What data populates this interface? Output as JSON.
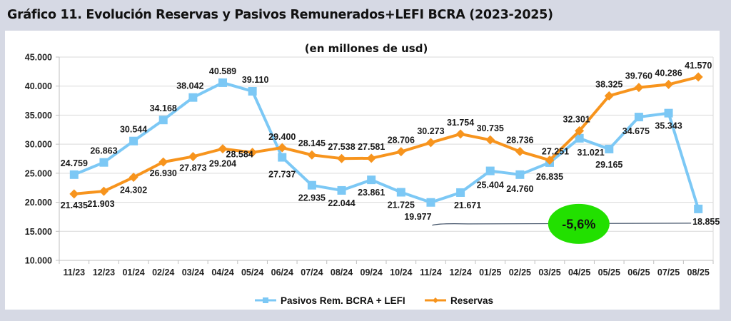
{
  "header": {
    "title": "Gráfico 11. Evolución Reservas y Pasivos Remunerados+LEFI BCRA (2023-2025)"
  },
  "chart_data": {
    "type": "line",
    "title": "(en millones de usd)",
    "xlabel": "",
    "ylabel": "",
    "ylim": [
      10000,
      45000
    ],
    "yticks": [
      10000,
      15000,
      20000,
      25000,
      30000,
      35000,
      40000,
      45000
    ],
    "ytick_labels": [
      "10.000",
      "15.000",
      "20.000",
      "25.000",
      "30.000",
      "35.000",
      "40.000",
      "45.000"
    ],
    "grid": true,
    "legend_position": "bottom",
    "categories": [
      "11/23",
      "12/23",
      "01/24",
      "02/24",
      "03/24",
      "04/24",
      "05/24",
      "06/24",
      "07/24",
      "08/24",
      "09/24",
      "10/24",
      "11/24",
      "12/24",
      "01/25",
      "02/25",
      "03/25",
      "04/25",
      "05/25",
      "06/25",
      "07/25",
      "08/25"
    ],
    "series": [
      {
        "name": "Pasivos Rem. BCRA + LEFI",
        "color": "#7cc8f5",
        "marker": "square",
        "values": [
          24759,
          26863,
          30544,
          34168,
          38042,
          40589,
          39110,
          27737,
          22935,
          22044,
          23861,
          21725,
          19977,
          21671,
          25404,
          24760,
          26835,
          31021,
          29165,
          34675,
          35343,
          18855
        ],
        "labels": [
          "24.759",
          "26.863",
          "30.544",
          "34.168",
          "38.042",
          "40.589",
          "39.110",
          "27.737",
          "22.935",
          "22.044",
          "23.861",
          "21.725",
          "19.977",
          "21.671",
          "25.404",
          "24.760",
          "26.835",
          "31.021",
          "29.165",
          "34.675",
          "35.343",
          "18.855"
        ]
      },
      {
        "name": "Reservas",
        "color": "#f7941d",
        "marker": "diamond",
        "values": [
          21435,
          21903,
          24302,
          26930,
          27873,
          29204,
          28584,
          29400,
          28145,
          27538,
          27581,
          28706,
          30273,
          31754,
          30735,
          28736,
          27251,
          32301,
          38325,
          39760,
          40286,
          41570
        ],
        "labels": [
          "21.435",
          "21.903",
          "24.302",
          "26.930",
          "27.873",
          "29.204",
          "28.584",
          "29.400",
          "28.145",
          "27.538",
          "27.581",
          "28.706",
          "30.273",
          "31.754",
          "30.735",
          "28.736",
          "27.251",
          "32.301",
          "38.325",
          "39.760",
          "40.286",
          "41.570"
        ]
      }
    ],
    "annotations": [
      {
        "type": "comparison-connector",
        "from_category": "11/24",
        "to_category": "08/25",
        "series": "Pasivos Rem. BCRA + LEFI",
        "text": "-5,6%",
        "badge_color": "#22e000",
        "line_color": "#44546a"
      }
    ]
  }
}
